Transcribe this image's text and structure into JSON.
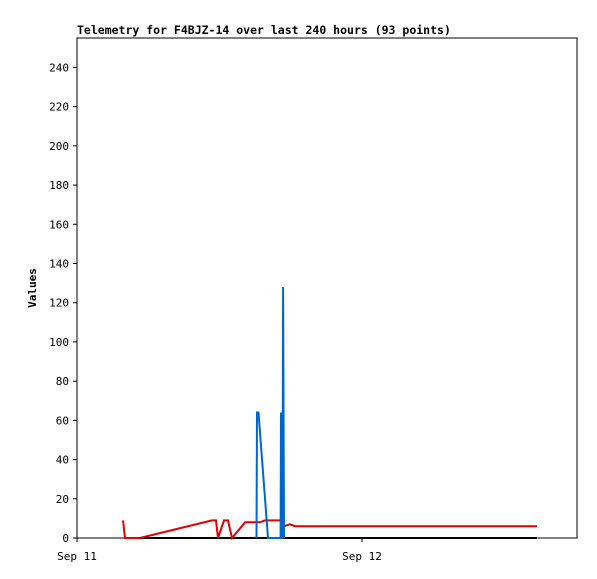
{
  "chart_data": {
    "type": "line",
    "title": "Telemetry for F4BJZ-14 over last 240 hours (93 points)",
    "y_label": "Values",
    "xlim": [
      0,
      42.1
    ],
    "xticks": [
      {
        "value": 0,
        "label": "Sep 11"
      },
      {
        "value": 24,
        "label": "Sep 12"
      }
    ],
    "ylim": [
      0,
      255
    ],
    "yticks": [
      0,
      20,
      40,
      60,
      80,
      100,
      120,
      140,
      160,
      180,
      200,
      220,
      240
    ],
    "series": [
      {
        "color": "#000000",
        "x": [
          4.04,
          38.73
        ],
        "values": [
          0,
          0
        ]
      },
      {
        "color": "#e00000",
        "x": [
          3.87,
          4.04,
          5.3,
          11.37,
          11.7,
          11.87,
          12.38,
          12.71,
          13.05,
          14.15,
          15.41,
          15.83,
          17.09,
          17.43,
          17.93,
          18.36,
          38.73
        ],
        "values": [
          9,
          0,
          0,
          9,
          9,
          0,
          9,
          9,
          0,
          8,
          8,
          9,
          9,
          6,
          7,
          6,
          6
        ]
      },
      {
        "color": "#0066cc",
        "x": [
          15.11,
          15.16,
          15.28,
          16.08,
          17.14,
          17.18,
          17.26,
          17.3,
          17.35,
          17.43
        ],
        "values": [
          0,
          64,
          64,
          0,
          0,
          64,
          0,
          0,
          128,
          0
        ]
      }
    ]
  }
}
